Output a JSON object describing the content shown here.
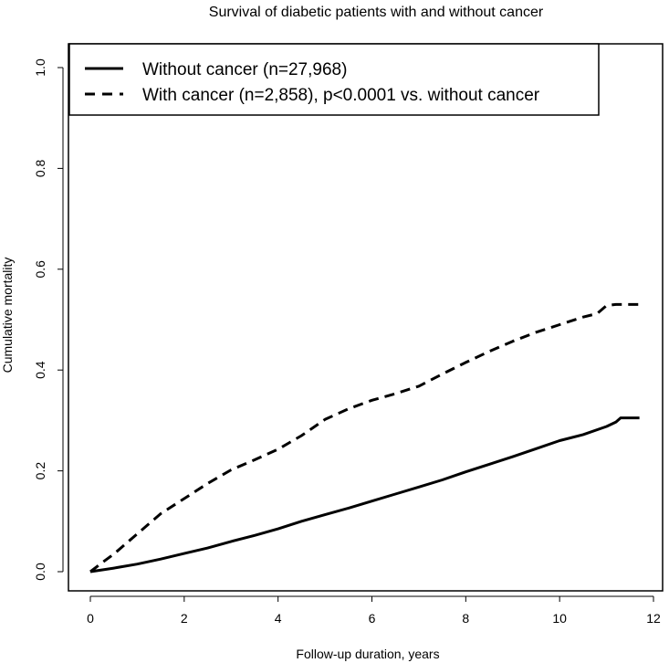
{
  "chart_data": {
    "type": "line",
    "title": "Survival of diabetic patients with and without cancer",
    "xlabel": "Follow-up duration, years",
    "ylabel": "Cumulative mortality",
    "xlim": [
      0,
      12
    ],
    "ylim": [
      0,
      1
    ],
    "x_ticks": [
      0,
      2,
      4,
      6,
      8,
      10,
      12
    ],
    "x_tick_labels": [
      "0",
      "2",
      "4",
      "6",
      "8",
      "10",
      "12"
    ],
    "y_ticks": [
      0.0,
      0.2,
      0.4,
      0.6,
      0.8,
      1.0
    ],
    "y_tick_labels": [
      "0.0",
      "0.2",
      "0.4",
      "0.6",
      "0.8",
      "1.0"
    ],
    "grid": false,
    "legend_position": "top-left",
    "series": [
      {
        "name": "Without cancer (n=27,968)",
        "line_style": "solid",
        "color": "#000000",
        "x": [
          0,
          0.5,
          1,
          1.5,
          2,
          2.5,
          3,
          3.5,
          4,
          4.5,
          5,
          5.5,
          6,
          6.5,
          7,
          7.5,
          8,
          8.5,
          9,
          9.5,
          10,
          10.5,
          11,
          11.2,
          11.3,
          11.5,
          11.7
        ],
        "y": [
          0.0,
          0.007,
          0.015,
          0.025,
          0.036,
          0.047,
          0.06,
          0.072,
          0.085,
          0.1,
          0.113,
          0.126,
          0.14,
          0.154,
          0.168,
          0.182,
          0.198,
          0.213,
          0.228,
          0.244,
          0.26,
          0.272,
          0.288,
          0.297,
          0.305,
          0.305,
          0.305
        ]
      },
      {
        "name": "With cancer (n=2,858), p<0.0001 vs. without cancer",
        "line_style": "dashed",
        "color": "#000000",
        "x": [
          0,
          0.25,
          0.5,
          0.75,
          1,
          1.5,
          2,
          2.5,
          3,
          3.5,
          4,
          4.5,
          5,
          5.5,
          6,
          6.5,
          7,
          7.5,
          8,
          8.5,
          9,
          9.5,
          10,
          10.5,
          10.8,
          11,
          11.2,
          11.7
        ],
        "y": [
          0.0,
          0.018,
          0.035,
          0.055,
          0.075,
          0.115,
          0.145,
          0.175,
          0.202,
          0.222,
          0.243,
          0.27,
          0.302,
          0.323,
          0.34,
          0.353,
          0.368,
          0.392,
          0.415,
          0.437,
          0.457,
          0.475,
          0.49,
          0.505,
          0.512,
          0.528,
          0.53,
          0.53
        ]
      }
    ]
  }
}
